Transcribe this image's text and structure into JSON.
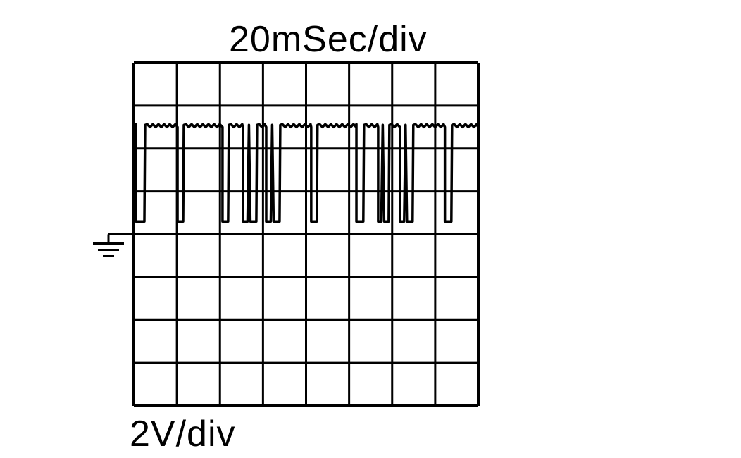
{
  "timebase_label": "20mSec/div",
  "voltage_label": "2V/div",
  "colors": {
    "trace": "#000000",
    "grid": "#000000",
    "background": "#ffffff"
  },
  "chart_data": {
    "type": "line",
    "title": "",
    "time_per_div_ms": 20,
    "volts_per_div": 2,
    "divisions": {
      "x": 8,
      "y": 8
    },
    "ground_marker": "ground-icon",
    "ground_division_from_top": 4,
    "xlim_ms": [
      0,
      160
    ],
    "ylim_v": [
      -8,
      8
    ],
    "high_level_v": 5.1,
    "low_level_v": 0.6,
    "low_pulses_ms": [
      [
        1.0,
        4.9
      ],
      [
        20.3,
        22.9
      ],
      [
        41.2,
        43.8
      ],
      [
        50.7,
        56.9
      ],
      [
        61.5,
        67.7
      ],
      [
        82.4,
        85.0
      ],
      [
        103.4,
        106.6
      ],
      [
        113.5,
        118.4
      ],
      [
        123.6,
        129.5
      ],
      [
        144.5,
        147.5
      ]
    ]
  }
}
